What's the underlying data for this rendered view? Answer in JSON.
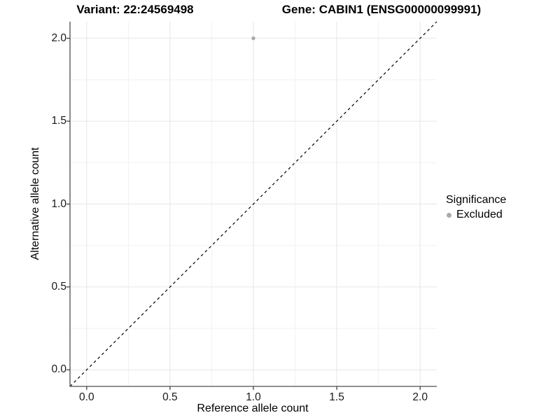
{
  "titles": {
    "variant": "Variant: 22:24569498",
    "gene": "Gene: CABIN1 (ENSG00000099991)"
  },
  "chart_data": {
    "type": "scatter",
    "title": "Variant: 22:24569498  /  Gene: CABIN1 (ENSG00000099991)",
    "xlabel": "Reference allele count",
    "ylabel": "Alternative allele count",
    "xlim": [
      -0.1,
      2.1
    ],
    "ylim": [
      -0.1,
      2.1
    ],
    "x_ticks": [
      0.0,
      0.5,
      1.0,
      1.5,
      2.0
    ],
    "x_tick_labels": [
      "0.0",
      "0.5",
      "1.0",
      "1.5",
      "2.0"
    ],
    "y_ticks": [
      0.0,
      0.5,
      1.0,
      1.5,
      2.0
    ],
    "y_tick_labels": [
      "0.0",
      "0.5",
      "1.0",
      "1.5",
      "2.0"
    ],
    "x_minor_ticks": [
      0.25,
      0.75,
      1.25,
      1.75
    ],
    "y_minor_ticks": [
      0.25,
      0.75,
      1.25,
      1.75
    ],
    "grid": "major and minor, light gray, on white panel",
    "series": [
      {
        "name": "Excluded",
        "points": [
          {
            "x": 1.0,
            "y": 2.0
          }
        ],
        "color": "#aaaaaa",
        "marker": "circle"
      }
    ],
    "reference_line": {
      "type": "abline",
      "slope": 1,
      "intercept": 0,
      "style": "dashed",
      "color": "#000000"
    },
    "legend": {
      "title": "Significance",
      "position": "right",
      "items": [
        {
          "label": "Excluded",
          "color": "#aaaaaa",
          "marker": "circle"
        }
      ]
    },
    "colors": {
      "background": "#ffffff",
      "grid_major": "#e6e6e6",
      "grid_minor": "#f1f1f1",
      "axis_line": "#4d4d4d",
      "tick_mark": "#333333",
      "tick_text": "#1a1a1a",
      "point": "#aaaaaa"
    }
  }
}
